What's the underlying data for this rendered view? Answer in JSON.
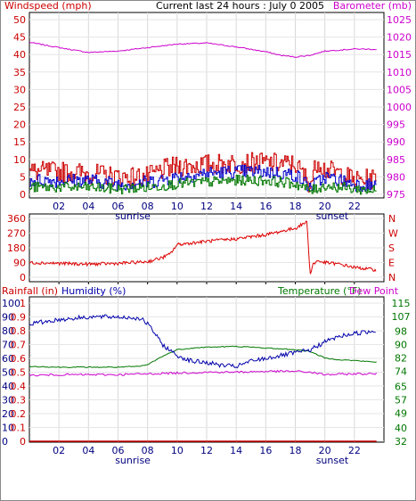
{
  "header": {
    "left_title": "Windspeed (mph)",
    "center_title": "Current last 24 hours : July 0 2005",
    "right_title": "Barometer (mb)"
  },
  "bottom_header": {
    "rainfall_label": "Rainfall (in)",
    "humidity_label": "Humidity (%)",
    "temperature_label": "Temperature (°F)",
    "dewpoint_label": "Dew Point"
  },
  "colors": {
    "wind": "#cc0000",
    "gust_blue": "#0000cc",
    "green": "#007700",
    "barometer": "#cc00cc",
    "direction": "#dd0000",
    "humidity": "#0000aa",
    "temperature": "#007700",
    "dewpoint": "#cc00cc",
    "rainfall": "#cc0000"
  },
  "chart_data": [
    {
      "type": "line",
      "id": "wind_barometer",
      "x_ticks": [
        "02",
        "04",
        "06",
        "08",
        "10",
        "12",
        "14",
        "16",
        "18",
        "20",
        "22"
      ],
      "x_annotations": [
        "sunrise",
        "sunset"
      ],
      "y_left_ticks": [
        "0",
        "5",
        "10",
        "15",
        "20",
        "25",
        "30",
        "35",
        "40",
        "45",
        "50"
      ],
      "y_left_range": [
        0,
        50
      ],
      "y_right_ticks": [
        "975",
        "980",
        "985",
        "990",
        "995",
        "1000",
        "1005",
        "1010",
        "1015",
        "1020",
        "1025"
      ],
      "y_right_range": [
        975,
        1025
      ],
      "series": [
        {
          "axis": "right",
          "hours": [
            0,
            2,
            4,
            6,
            8,
            10,
            12,
            14,
            16,
            17,
            18,
            19,
            20,
            21,
            22,
            23.5
          ],
          "values": [
            1018.5,
            1017,
            1015.6,
            1016,
            1017,
            1018,
            1018.3,
            1017.2,
            1015.8,
            1014.8,
            1014.3,
            1014.8,
            1016,
            1016.3,
            1016.6,
            1016.5
          ]
        },
        {
          "axis": "left",
          "hours": [
            0,
            2,
            4,
            6,
            8,
            9,
            10,
            12,
            14,
            16,
            18,
            19,
            19.5,
            20,
            21,
            22,
            23.5
          ],
          "values": [
            6.5,
            6.5,
            6,
            5,
            5,
            7,
            8,
            8.5,
            9,
            9,
            8.5,
            3,
            10,
            7,
            6,
            4,
            4.5
          ]
        },
        {
          "axis": "left",
          "hours": [
            0,
            2,
            4,
            6,
            8,
            10,
            12,
            14,
            16,
            18,
            19,
            20,
            21,
            22,
            23.5
          ],
          "values": [
            4,
            4,
            4,
            3,
            3.5,
            5,
            6,
            6.5,
            6.5,
            5.5,
            2,
            5,
            4,
            3,
            2.5
          ]
        },
        {
          "axis": "left",
          "hours": [
            0,
            2,
            4,
            6,
            8,
            10,
            12,
            14,
            16,
            18,
            19,
            20,
            21,
            22,
            23.5
          ],
          "values": [
            2,
            2,
            2,
            1.5,
            2,
            3,
            3.5,
            4,
            4,
            3,
            1,
            2.5,
            2,
            1.5,
            1
          ]
        }
      ]
    },
    {
      "type": "line",
      "id": "wind_direction",
      "x_ticks": [
        "02",
        "04",
        "06",
        "08",
        "10",
        "12",
        "14",
        "16",
        "18",
        "20",
        "22"
      ],
      "y_left_ticks": [
        "0",
        "90",
        "180",
        "270",
        "360"
      ],
      "y_left_range": [
        0,
        360
      ],
      "y_right_ticks": [
        "N",
        "W",
        "S",
        "E",
        "N"
      ],
      "series": [
        {
          "axis": "left",
          "hours": [
            0,
            2,
            4,
            6,
            8,
            9,
            9.5,
            10,
            12,
            14,
            16,
            18,
            18.8,
            19,
            19.2,
            19.5,
            20,
            21,
            22,
            23.5
          ],
          "values": [
            90,
            85,
            80,
            85,
            95,
            120,
            140,
            200,
            220,
            235,
            260,
            300,
            340,
            10,
            80,
            100,
            90,
            80,
            60,
            45
          ]
        }
      ]
    },
    {
      "type": "line",
      "id": "rain_humidity_temperature",
      "x_ticks": [
        "02",
        "04",
        "06",
        "08",
        "10",
        "12",
        "14",
        "16",
        "18",
        "20",
        "22"
      ],
      "x_annotations": [
        "sunrise",
        "sunset"
      ],
      "y_rain_ticks": [
        "0",
        "0.1",
        "0.2",
        "0.3",
        "0.4",
        "0.5",
        "0.6",
        "0.7",
        "0.8",
        "0.9",
        "1"
      ],
      "y_humidity_ticks": [
        "0",
        "10",
        "20",
        "30",
        "40",
        "50",
        "60",
        "70",
        "80",
        "90",
        "100"
      ],
      "y_humidity_range": [
        0,
        100
      ],
      "y_temperature_ticks": [
        "32",
        "40",
        "49",
        "57",
        "65",
        "74",
        "82",
        "90",
        "98",
        "107",
        "115"
      ],
      "y_temperature_range": [
        32,
        115
      ],
      "series": [
        {
          "name": "Humidity (%)",
          "axis": "humidity",
          "hours": [
            0,
            2,
            4,
            6,
            7.5,
            8,
            8.5,
            9,
            10,
            11,
            12,
            13,
            14,
            15,
            16,
            17,
            18,
            19,
            20,
            21,
            22,
            23.5
          ],
          "values": [
            85,
            88,
            90,
            90,
            89,
            85,
            78,
            70,
            62,
            58,
            57,
            55,
            54,
            58,
            60,
            62,
            64,
            66,
            72,
            76,
            78,
            80
          ]
        },
        {
          "name": "Temperature (°F)",
          "axis": "temperature",
          "hours": [
            0,
            2,
            4,
            6,
            7.5,
            8,
            9,
            10,
            11,
            12,
            14,
            16,
            18,
            19,
            20,
            21,
            22,
            23.5
          ],
          "values": [
            77,
            76.5,
            76.5,
            76.5,
            77,
            78,
            83,
            87,
            88,
            88.5,
            89,
            88,
            87,
            86,
            82,
            81,
            80.5,
            79.5
          ]
        },
        {
          "name": "Dew Point",
          "axis": "temperature",
          "hours": [
            0,
            2,
            4,
            6,
            8,
            10,
            12,
            14,
            16,
            18,
            19,
            20,
            22,
            23.5
          ],
          "values": [
            71.5,
            72,
            72,
            72,
            72.5,
            73,
            73.5,
            73.5,
            74,
            74,
            73.5,
            72,
            72.5,
            72.5
          ]
        },
        {
          "name": "Rainfall (in)",
          "axis": "rain",
          "hours": [
            0,
            23.5
          ],
          "values": [
            0,
            0
          ]
        }
      ]
    }
  ]
}
